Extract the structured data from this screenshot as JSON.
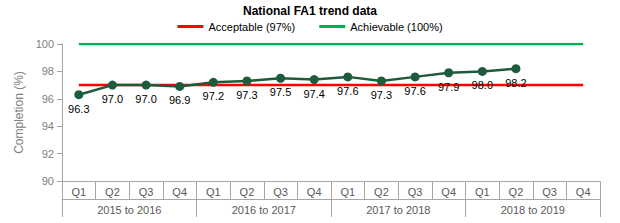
{
  "chart_data": {
    "type": "line",
    "title": "National FA1 trend data",
    "y_label": "Completion (%)",
    "categories": [
      "Q1",
      "Q2",
      "Q3",
      "Q4",
      "Q1",
      "Q2",
      "Q3",
      "Q4",
      "Q1",
      "Q2",
      "Q3",
      "Q4",
      "Q1",
      "Q2",
      "Q3",
      "Q4"
    ],
    "category_groups": [
      "2015 to 2016",
      "2016 to 2017",
      "2017 to 2018",
      "2018 to 2019"
    ],
    "series": [
      {
        "color": "#1e5b3c",
        "marker": "circle",
        "line_style": "solid",
        "values": [
          96.3,
          97.0,
          97.0,
          96.9,
          97.2,
          97.3,
          97.5,
          97.4,
          97.6,
          97.3,
          97.6,
          97.9,
          98.0,
          98.2,
          null,
          null
        ],
        "value_labels": [
          "96.3",
          "97.0",
          "97.0",
          "96.9",
          "97.2",
          "97.3",
          "97.5",
          "97.4",
          "97.6",
          "97.3",
          "97.6",
          "97.9",
          "98.0",
          "98.2",
          null,
          null
        ]
      },
      {
        "name": "Acceptable (97%)",
        "color": "#ff0000",
        "marker": "none",
        "line_style": "solid",
        "values": [
          97,
          97,
          97,
          97,
          97,
          97,
          97,
          97,
          97,
          97,
          97,
          97,
          97,
          97,
          97,
          97
        ]
      },
      {
        "name": "Achievable (100%)",
        "color": "#00b050",
        "marker": "none",
        "line_style": "solid",
        "values": [
          100,
          100,
          100,
          100,
          100,
          100,
          100,
          100,
          100,
          100,
          100,
          100,
          100,
          100,
          100,
          100
        ]
      }
    ],
    "ylim": [
      90,
      100
    ],
    "yticks": [
      90,
      92,
      94,
      96,
      98,
      100
    ],
    "grid": false,
    "legend": "top",
    "data_labels": true
  }
}
